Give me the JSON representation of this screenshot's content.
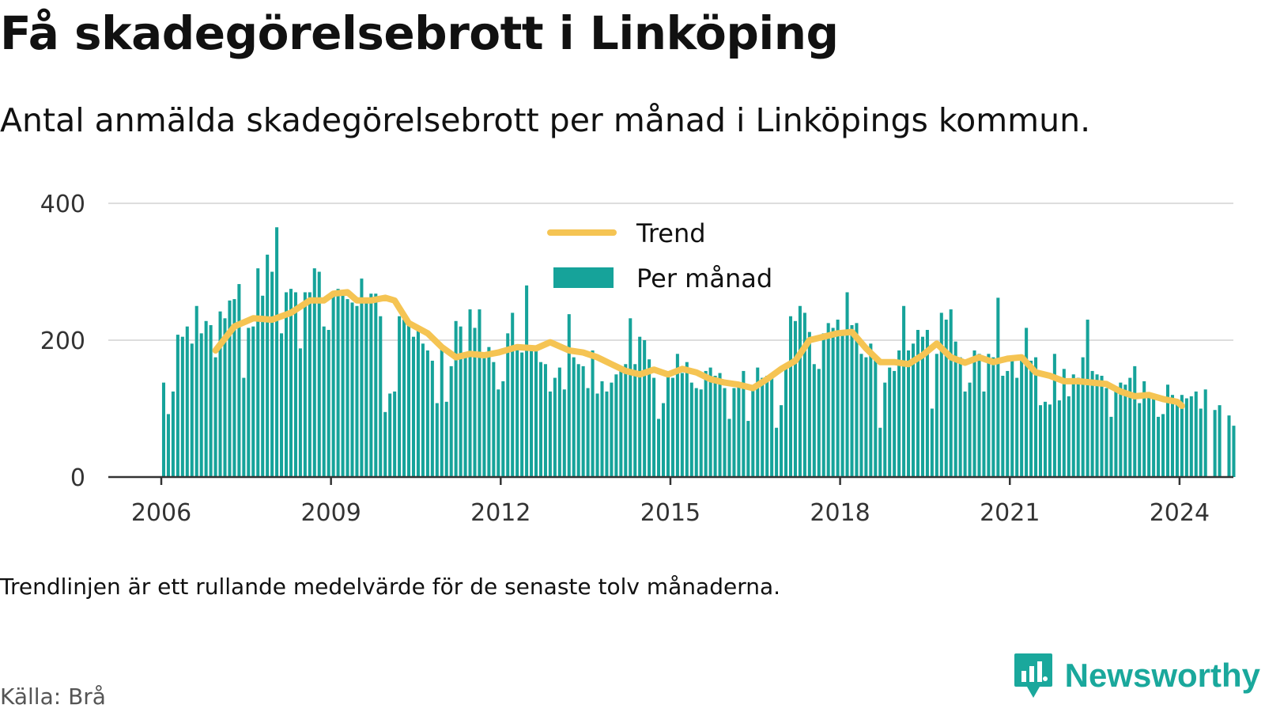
{
  "title": "Få skadegörelsebrott i Linköping",
  "subtitle": "Antal anmälda skadegörelsebrott per månad i Linköpings kommun.",
  "footnote": "Trendlinjen är ett rullande medelvärde för de senaste tolv månaderna.",
  "source": "Källa: Brå",
  "brand": {
    "name": "Newsworthy",
    "icon": "newsworthy-logo-icon",
    "color": "#1aa89c"
  },
  "chart_data": {
    "type": "bar",
    "title": "Få skadegörelsebrott i Linköping",
    "xlabel": "",
    "ylabel": "",
    "ylim": [
      0,
      400
    ],
    "y_ticks": [
      "0",
      "200",
      "400"
    ],
    "x_ticks": [
      "2006",
      "2009",
      "2012",
      "2015",
      "2018",
      "2021",
      "2024"
    ],
    "grid": "horizontal",
    "legend_position": "top-center",
    "colors": {
      "bars": "#16a39a",
      "trend": "#f5c453",
      "grid": "#dddddd",
      "axis": "#333333"
    },
    "x_start": "2006-01",
    "series": [
      {
        "name": "Per månad",
        "kind": "bar",
        "values": [
          138,
          92,
          125,
          208,
          205,
          220,
          195,
          250,
          210,
          228,
          222,
          175,
          242,
          232,
          258,
          260,
          282,
          145,
          218,
          220,
          305,
          265,
          325,
          300,
          365,
          210,
          270,
          275,
          270,
          188,
          270,
          270,
          305,
          300,
          220,
          215,
          270,
          275,
          265,
          260,
          255,
          250,
          290,
          260,
          268,
          268,
          235,
          95,
          122,
          125,
          235,
          230,
          225,
          205,
          215,
          195,
          185,
          170,
          108,
          192,
          110,
          162,
          228,
          220,
          180,
          245,
          218,
          245,
          175,
          190,
          168,
          128,
          140,
          210,
          240,
          188,
          182,
          280,
          190,
          188,
          168,
          165,
          125,
          145,
          160,
          128,
          238,
          175,
          165,
          162,
          130,
          185,
          122,
          140,
          125,
          138,
          150,
          160,
          165,
          232,
          165,
          205,
          200,
          172,
          145,
          85,
          108,
          150,
          145,
          180,
          152,
          168,
          138,
          130,
          128,
          155,
          160,
          148,
          152,
          130,
          85,
          130,
          138,
          155,
          82,
          130,
          160,
          145,
          148,
          148,
          72,
          105,
          160,
          235,
          228,
          250,
          240,
          212,
          165,
          158,
          210,
          225,
          218,
          230,
          215,
          270,
          222,
          225,
          180,
          175,
          195,
          175,
          72,
          138,
          160,
          155,
          185,
          250,
          185,
          195,
          215,
          205,
          215,
          100,
          180,
          240,
          230,
          245,
          198,
          175,
          125,
          138,
          185,
          180,
          125,
          180,
          175,
          262,
          148,
          155,
          170,
          145,
          170,
          218,
          170,
          175,
          105,
          110,
          106,
          180,
          112,
          158,
          118,
          150,
          145,
          175,
          230,
          155,
          150,
          148,
          130,
          88,
          132,
          138,
          135,
          145,
          162,
          108,
          140,
          122,
          115,
          88,
          92,
          135,
          120,
          112,
          120,
          115,
          118,
          125,
          100,
          128,
          0,
          98,
          105,
          0,
          90,
          75
        ]
      },
      {
        "name": "Trend",
        "kind": "line",
        "points": [
          [
            "2006-12",
            185
          ],
          [
            "2007-04",
            220
          ],
          [
            "2007-08",
            232
          ],
          [
            "2007-12",
            230
          ],
          [
            "2008-04",
            240
          ],
          [
            "2008-08",
            258
          ],
          [
            "2008-11",
            258
          ],
          [
            "2009-01",
            268
          ],
          [
            "2009-04",
            270
          ],
          [
            "2009-06",
            258
          ],
          [
            "2009-09",
            258
          ],
          [
            "2009-12",
            262
          ],
          [
            "2010-02",
            258
          ],
          [
            "2010-05",
            225
          ],
          [
            "2010-09",
            210
          ],
          [
            "2010-12",
            190
          ],
          [
            "2011-03",
            175
          ],
          [
            "2011-06",
            180
          ],
          [
            "2011-09",
            178
          ],
          [
            "2011-12",
            182
          ],
          [
            "2012-04",
            190
          ],
          [
            "2012-08",
            188
          ],
          [
            "2012-11",
            197
          ],
          [
            "2013-03",
            185
          ],
          [
            "2013-06",
            182
          ],
          [
            "2013-09",
            175
          ],
          [
            "2013-12",
            165
          ],
          [
            "2014-03",
            155
          ],
          [
            "2014-06",
            150
          ],
          [
            "2014-09",
            157
          ],
          [
            "2014-12",
            150
          ],
          [
            "2015-03",
            158
          ],
          [
            "2015-06",
            153
          ],
          [
            "2015-09",
            143
          ],
          [
            "2015-12",
            138
          ],
          [
            "2016-03",
            135
          ],
          [
            "2016-06",
            130
          ],
          [
            "2016-09",
            143
          ],
          [
            "2016-12",
            158
          ],
          [
            "2017-03",
            170
          ],
          [
            "2017-06",
            200
          ],
          [
            "2017-09",
            205
          ],
          [
            "2017-12",
            210
          ],
          [
            "2018-03",
            212
          ],
          [
            "2018-06",
            188
          ],
          [
            "2018-09",
            168
          ],
          [
            "2018-12",
            168
          ],
          [
            "2019-03",
            165
          ],
          [
            "2019-06",
            178
          ],
          [
            "2019-09",
            195
          ],
          [
            "2019-12",
            175
          ],
          [
            "2020-03",
            167
          ],
          [
            "2020-06",
            175
          ],
          [
            "2020-09",
            168
          ],
          [
            "2020-12",
            173
          ],
          [
            "2021-03",
            175
          ],
          [
            "2021-06",
            153
          ],
          [
            "2021-09",
            148
          ],
          [
            "2021-12",
            140
          ],
          [
            "2022-03",
            140
          ],
          [
            "2022-06",
            138
          ],
          [
            "2022-09",
            136
          ],
          [
            "2022-12",
            125
          ],
          [
            "2023-03",
            118
          ],
          [
            "2023-06",
            120
          ],
          [
            "2023-09",
            114
          ],
          [
            "2023-12",
            110
          ],
          [
            "2024-01",
            104
          ]
        ]
      }
    ]
  }
}
